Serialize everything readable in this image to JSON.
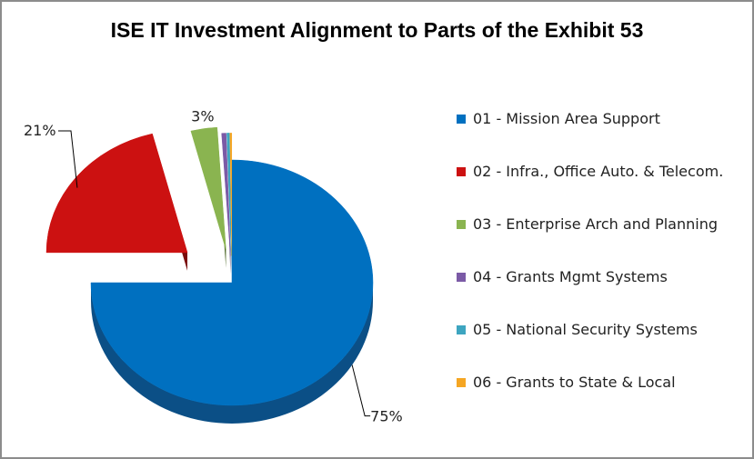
{
  "chart_data": {
    "type": "pie",
    "title": "ISE IT Investment Alignment to Parts of the Exhibit 53",
    "slices": [
      {
        "name": "01 - Mission Area Support",
        "value": 75,
        "label": "75%",
        "color": "#0070c0",
        "side": "#0b4f86"
      },
      {
        "name": "02 - Infra., Office Auto. & Telecom.",
        "value": 21,
        "label": "21%",
        "color": "#cc1111",
        "side": "#7a0d0d"
      },
      {
        "name": "03 - Enterprise Arch and Planning",
        "value": 3,
        "label": "3%",
        "color": "#8ab450",
        "side": "#4f6a2c"
      },
      {
        "name": "04 - Grants Mgmt Systems",
        "value": 0.5,
        "label": "",
        "color": "#7b5aa6",
        "side": "#4a3566"
      },
      {
        "name": "05 - National Security Systems",
        "value": 0.3,
        "label": "",
        "color": "#3da5c0",
        "side": "#256577"
      },
      {
        "name": "06 - Grants to State & Local",
        "value": 0.2,
        "label": "",
        "color": "#f5a623",
        "side": "#9a6412"
      }
    ],
    "legend_position": "right"
  }
}
